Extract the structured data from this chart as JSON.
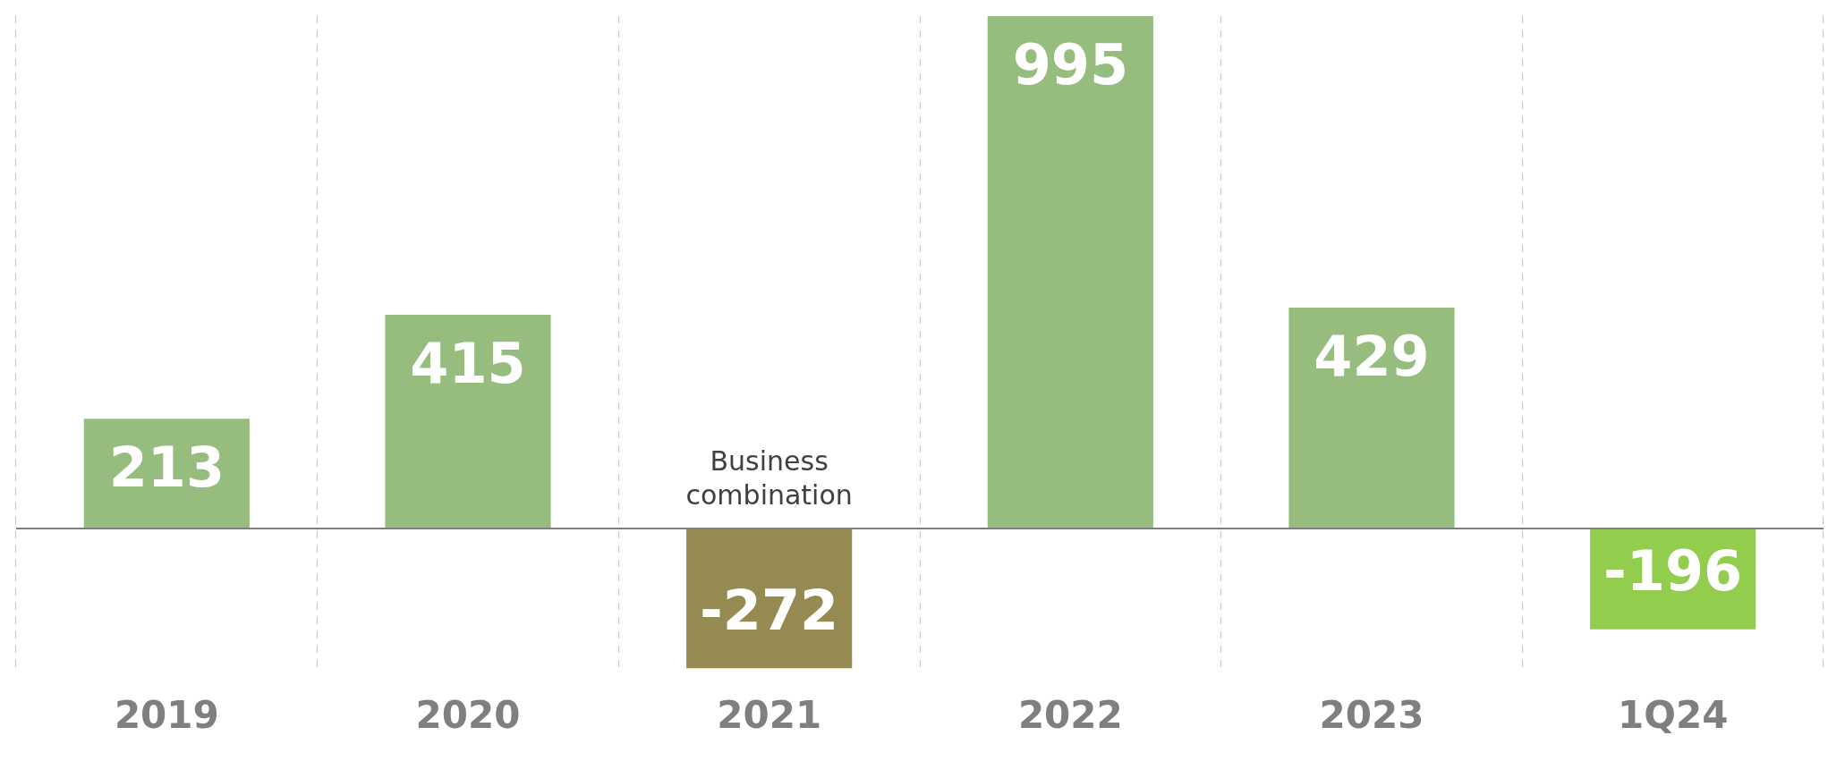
{
  "chart_data": {
    "type": "bar",
    "categories": [
      "2019",
      "2020",
      "2021",
      "2022",
      "2023",
      "1Q24"
    ],
    "values": [
      213,
      415,
      -272,
      995,
      429,
      -196
    ],
    "colors": [
      "#96bd7e",
      "#96bd7e",
      "#948a52",
      "#96bd7e",
      "#96bd7e",
      "#92cd4e"
    ],
    "data_labels": true,
    "grid": "x",
    "tick_labels": "x",
    "annotations": [
      {
        "text": "Business combination",
        "x": "2021",
        "y": 0
      }
    ]
  }
}
